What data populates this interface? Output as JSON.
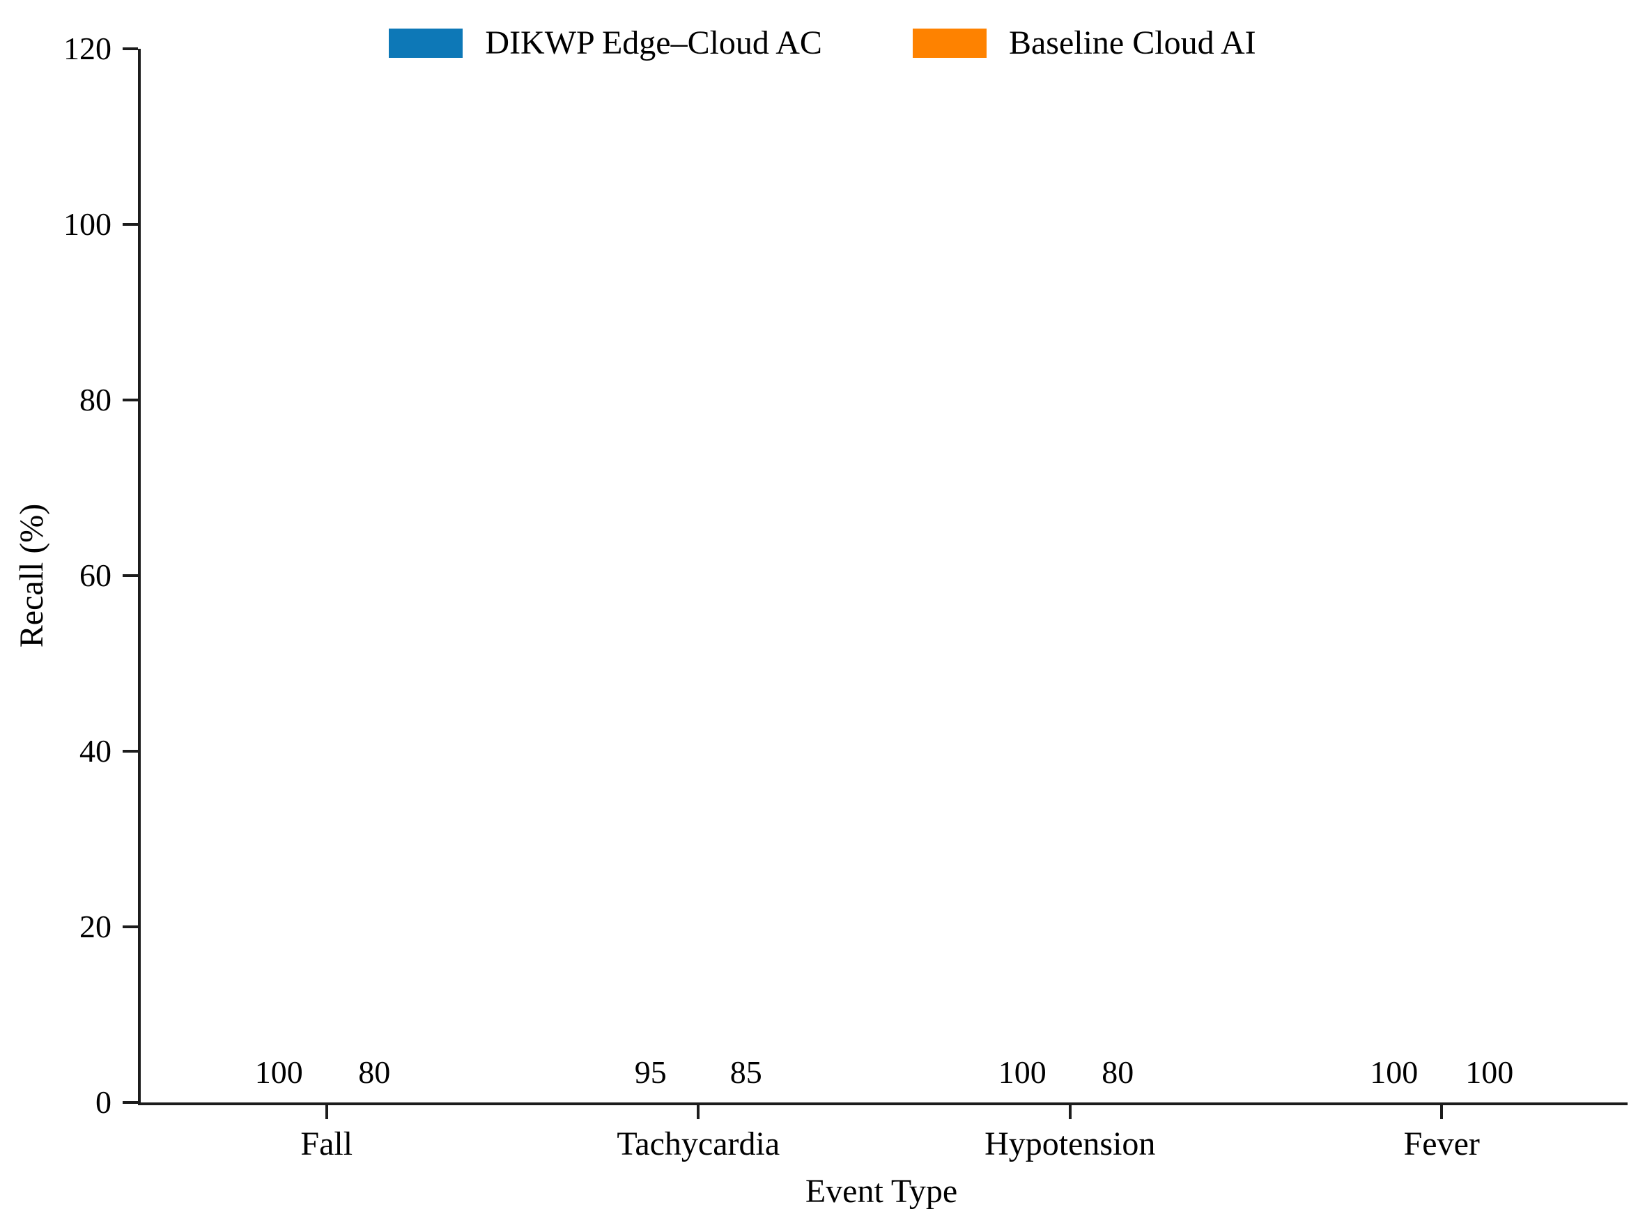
{
  "chart_data": {
    "type": "bar",
    "title": "",
    "xlabel": "Event Type",
    "ylabel": "Recall (%)",
    "categories": [
      "Fall",
      "Tachycardia",
      "Hypotension",
      "Fever"
    ],
    "series": [
      {
        "name": "DIKWP Edge–Cloud AC",
        "color": "#0d78b7",
        "values": [
          100,
          95,
          100,
          100
        ]
      },
      {
        "name": "Baseline Cloud AI",
        "color": "#fe8200",
        "values": [
          80,
          85,
          80,
          100
        ]
      }
    ],
    "ylim": [
      0,
      120
    ],
    "yticks": [
      0,
      20,
      40,
      60,
      80,
      100,
      120
    ],
    "bar_value_labels": true,
    "legend_position": "top-center",
    "grid": false,
    "axis_color": "#1c1c1c",
    "background_color": "#ffffff"
  }
}
